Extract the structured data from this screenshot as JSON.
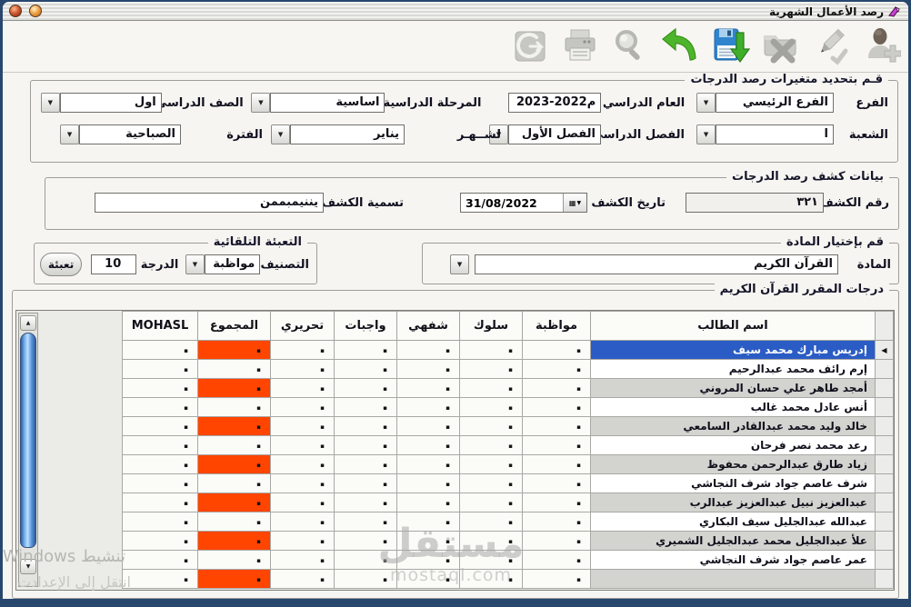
{
  "window": {
    "title": "رصد الأعمال الشهرية",
    "controls": [
      {
        "name": "close"
      },
      {
        "name": "minimize"
      }
    ]
  },
  "toolbar": {
    "icons": [
      {
        "name": "add-user-icon",
        "enabled": false
      },
      {
        "name": "edit-pencil-icon",
        "enabled": false
      },
      {
        "name": "delete-folder-x-icon",
        "enabled": false
      },
      {
        "name": "save-floppy-icon",
        "enabled": true
      },
      {
        "name": "undo-arrow-icon",
        "enabled": true
      },
      {
        "name": "search-magnifier-icon",
        "enabled": false
      },
      {
        "name": "print-icon",
        "enabled": false
      },
      {
        "name": "exit-icon",
        "enabled": false
      }
    ]
  },
  "filters": {
    "legend": "قـم بتحديد متغيرات رصد الدرجات",
    "branch": {
      "label": "الفرع",
      "value": "الفرع الرئيسي"
    },
    "year": {
      "label": "العام الدراسي",
      "value": "2023-2022م"
    },
    "stage": {
      "label": "المرحلة الدراسية",
      "value": "اساسية"
    },
    "grade": {
      "label": "الصف الدراسي",
      "value": "اول"
    },
    "section": {
      "label": "الشعبة",
      "value": "ا"
    },
    "semester": {
      "label": "الفصل الدراسي",
      "value": "الفصل الأول"
    },
    "month": {
      "label": "لشــهـر",
      "value": "يناير"
    },
    "period": {
      "label": "الفترة",
      "value": "الصباحية"
    }
  },
  "sheet": {
    "legend": "بيانات كشف رصد الدرجات",
    "number": {
      "label": "رقم الكشف",
      "value": "٣٢١"
    },
    "date": {
      "label": "تاريخ الكشف",
      "value": "31/08/2022"
    },
    "name": {
      "label": "تسمية الكشف",
      "value": "يننيمبممن"
    }
  },
  "subject": {
    "legend": "قم بإختيار المادة",
    "label": "المادة",
    "value": "القرآن الكريم"
  },
  "autofill": {
    "legend": "التعبئة التلقائية",
    "category": {
      "label": "التصنيف",
      "value": "مواظبة"
    },
    "degree": {
      "label": "الدرجة",
      "value": "10"
    },
    "button_label": "تعبئة"
  },
  "grid": {
    "legend": "درجات المقرر القرآن الكريم",
    "columns": [
      "اسم الطالب",
      "مواظبة",
      "سلوك",
      "شفهي",
      "واجبات",
      "تحريري",
      "المجموع",
      "MOHASL"
    ],
    "total_column": "المجموع",
    "cell_placeholder": "▪",
    "selected_index": 0,
    "selection_arrow": "◀",
    "students": [
      "إدريس مبارك محمد سيف",
      "إرم رائف محمد عبدالرحيم",
      "أمجد طاهر علي حسان المروني",
      "أنس عادل محمد غالب",
      "خالد وليد محمد عبدالقادر السامعي",
      "رعد محمد نصر فرحان",
      "زياد طارق عبدالرحمن محفوظ",
      "شرف عاصم جواد شرف النجاشي",
      "عبدالعزيز نبيل عبدالعزيز عبدالرب",
      "عبدالله عبدالجليل سيف البكاري",
      "علأ عبدالجليل محمد عبدالجليل الشميري",
      "عمر عاصم جواد شرف النجاشي"
    ],
    "colors": {
      "total_highlight": "#FF4500",
      "selected_row": "#2B5CC5",
      "stripe_row": "#D3D3D0"
    }
  },
  "watermarks": {
    "center_logo": "مستقل",
    "center_domain": "mostaql.com",
    "activate_line1": "تنشيط Windows",
    "activate_line2": "انتقل إلى الإعدادت"
  }
}
